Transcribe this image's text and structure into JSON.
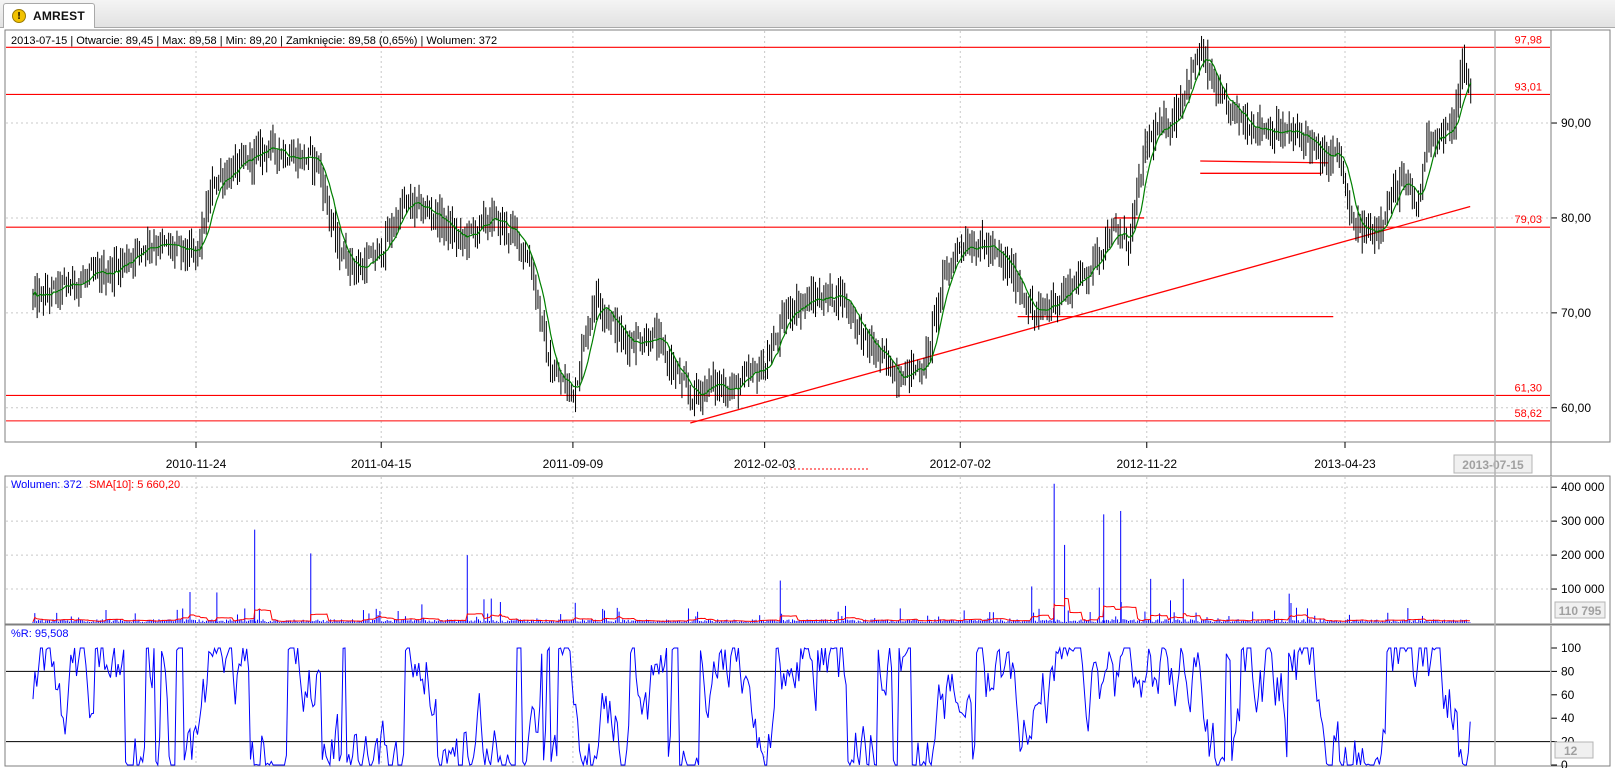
{
  "tab": {
    "title": "AMREST",
    "icon": "warning-icon"
  },
  "chart_data": {
    "type": "candlestick",
    "info_line": "2013-07-15 | Otwarcie: 89,45 | Max: 89,58 | Min: 89,20 | Zamknięcie: 89,58 (0,65%) | Wolumen: 372",
    "x_tick_labels": [
      "2010-11-24",
      "2011-04-15",
      "2011-09-09",
      "2012-02-03",
      "2012-07-02",
      "2012-11-22",
      "2013-04-23"
    ],
    "current_date_label": "2013-07-15",
    "price_panel": {
      "y_ticks": [
        "60,00",
        "70,00",
        "80,00",
        "90,00"
      ],
      "ylim": [
        56.5,
        99.8
      ],
      "horizontal_levels": [
        {
          "value": 97.98,
          "label": "97,98"
        },
        {
          "value": 93.01,
          "label": "93,01"
        },
        {
          "value": 79.03,
          "label": "79,03"
        },
        {
          "value": 61.3,
          "label": "61,30"
        },
        {
          "value": 58.62,
          "label": "58,62"
        }
      ],
      "trend_segments": [
        {
          "from": [
            "2011-12-08",
            58.4
          ],
          "to": [
            "2013-07-28",
            81.2
          ]
        },
        {
          "from": [
            "2012-08-15",
            69.6
          ],
          "to": [
            "2013-04-14",
            69.6
          ]
        },
        {
          "from": [
            "2012-10-28",
            80.0
          ],
          "to": [
            "2012-11-20",
            80.0
          ]
        },
        {
          "from": [
            "2013-01-02",
            86.0
          ],
          "to": [
            "2013-04-10",
            85.8
          ]
        },
        {
          "from": [
            "2013-01-02",
            84.7
          ],
          "to": [
            "2013-04-05",
            84.7
          ]
        }
      ],
      "close_anchors": [
        [
          "2010-07-26",
          71.5
        ],
        [
          "2010-08-20",
          73.0
        ],
        [
          "2010-09-20",
          74.5
        ],
        [
          "2010-10-20",
          77.5
        ],
        [
          "2010-11-10",
          76.5
        ],
        [
          "2010-11-24",
          76.0
        ],
        [
          "2010-12-08",
          84.0
        ],
        [
          "2010-12-28",
          85.5
        ],
        [
          "2011-01-18",
          87.5
        ],
        [
          "2011-02-08",
          86.5
        ],
        [
          "2011-02-25",
          86.0
        ],
        [
          "2011-03-12",
          77.0
        ],
        [
          "2011-03-28",
          74.5
        ],
        [
          "2011-04-15",
          76.5
        ],
        [
          "2011-05-02",
          81.5
        ],
        [
          "2011-05-25",
          80.5
        ],
        [
          "2011-06-15",
          77.5
        ],
        [
          "2011-07-08",
          80.0
        ],
        [
          "2011-07-28",
          78.0
        ],
        [
          "2011-08-08",
          75.0
        ],
        [
          "2011-08-22",
          64.0
        ],
        [
          "2011-09-09",
          61.5
        ],
        [
          "2011-09-26",
          72.0
        ],
        [
          "2011-10-18",
          67.0
        ],
        [
          "2011-11-10",
          67.5
        ],
        [
          "2011-11-28",
          63.5
        ],
        [
          "2011-12-08",
          61.0
        ],
        [
          "2011-12-22",
          62.5
        ],
        [
          "2012-01-10",
          62.0
        ],
        [
          "2012-02-03",
          64.5
        ],
        [
          "2012-02-22",
          70.5
        ],
        [
          "2012-03-12",
          71.5
        ],
        [
          "2012-04-02",
          72.0
        ],
        [
          "2012-04-20",
          67.0
        ],
        [
          "2012-05-15",
          63.5
        ],
        [
          "2012-06-05",
          64.5
        ],
        [
          "2012-06-18",
          73.0
        ],
        [
          "2012-07-02",
          77.5
        ],
        [
          "2012-07-22",
          77.0
        ],
        [
          "2012-08-12",
          74.0
        ],
        [
          "2012-08-28",
          69.5
        ],
        [
          "2012-09-18",
          72.0
        ],
        [
          "2012-10-08",
          74.5
        ],
        [
          "2012-10-25",
          78.5
        ],
        [
          "2012-11-08",
          77.5
        ],
        [
          "2012-11-22",
          88.0
        ],
        [
          "2012-12-12",
          90.5
        ],
        [
          "2013-01-02",
          97.5
        ],
        [
          "2013-01-18",
          92.0
        ],
        [
          "2013-02-08",
          90.0
        ],
        [
          "2013-03-05",
          89.0
        ],
        [
          "2013-03-25",
          88.5
        ],
        [
          "2013-04-05",
          86.0
        ],
        [
          "2013-04-18",
          87.0
        ],
        [
          "2013-04-28",
          79.0
        ],
        [
          "2013-05-15",
          78.5
        ],
        [
          "2013-06-05",
          84.0
        ],
        [
          "2013-06-18",
          81.0
        ],
        [
          "2013-06-25",
          89.0
        ],
        [
          "2013-07-02",
          88.5
        ],
        [
          "2013-07-10",
          89.0
        ],
        [
          "2013-07-15",
          89.58
        ],
        [
          "2013-07-22",
          96.0
        ],
        [
          "2013-07-28",
          93.5
        ]
      ]
    },
    "volume_panel": {
      "legend_volume": "Wolumen: 372",
      "legend_sma": "SMA[10]: 5 660,20",
      "y_ticks": [
        "100 000",
        "200 000",
        "300 000",
        "400 000"
      ],
      "ylim": [
        0,
        430000
      ],
      "cursor_value_label": "110 795",
      "spikes": [
        [
          "2010-12-10",
          90000
        ],
        [
          "2011-01-08",
          275000
        ],
        [
          "2011-02-20",
          205000
        ],
        [
          "2011-06-20",
          200000
        ],
        [
          "2012-02-15",
          125000
        ],
        [
          "2012-09-12",
          410000
        ],
        [
          "2012-09-20",
          230000
        ],
        [
          "2012-10-20",
          320000
        ],
        [
          "2012-11-02",
          330000
        ],
        [
          "2012-11-25",
          130000
        ],
        [
          "2012-12-20",
          130000
        ]
      ]
    },
    "williams_r_panel": {
      "legend": "%R: 95,508",
      "y_ticks": [
        "0",
        "20",
        "40",
        "60",
        "80",
        "100"
      ],
      "ylim": [
        0,
        100
      ],
      "overbought": 80,
      "oversold": 20,
      "cursor_value_label": "12"
    },
    "colors": {
      "candle": "#000000",
      "moving_average": "#008000",
      "level_line": "#ff0000",
      "volume_bar": "#0000ff",
      "sma_line": "#ff0000",
      "williams_line": "#0000ff",
      "grid": "#c8c8c8",
      "cursor_line": "#b4b4b4"
    }
  }
}
